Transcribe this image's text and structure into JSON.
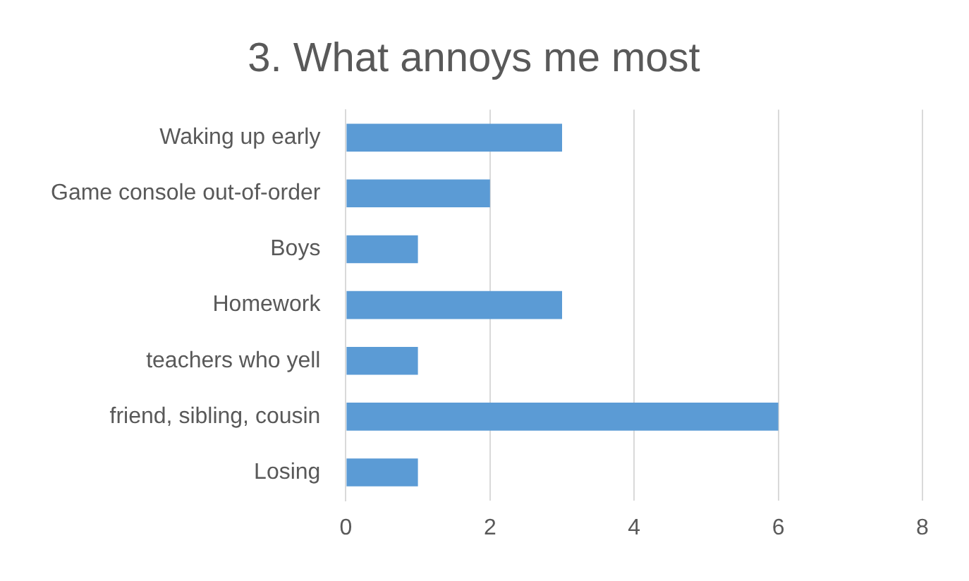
{
  "chart_data": {
    "type": "bar",
    "orientation": "horizontal",
    "title": "3. What annoys me most",
    "categories": [
      "Waking up early",
      "Game console out-of-order",
      "Boys",
      "Homework",
      "teachers who yell",
      "friend, sibling, cousin",
      "Losing"
    ],
    "values": [
      3,
      2,
      1,
      3,
      1,
      6,
      1
    ],
    "color": "#5b9bd5",
    "xlim": [
      0,
      8
    ],
    "xticks": [
      0,
      2,
      4,
      6,
      8
    ],
    "grid": "x",
    "legend": false
  }
}
